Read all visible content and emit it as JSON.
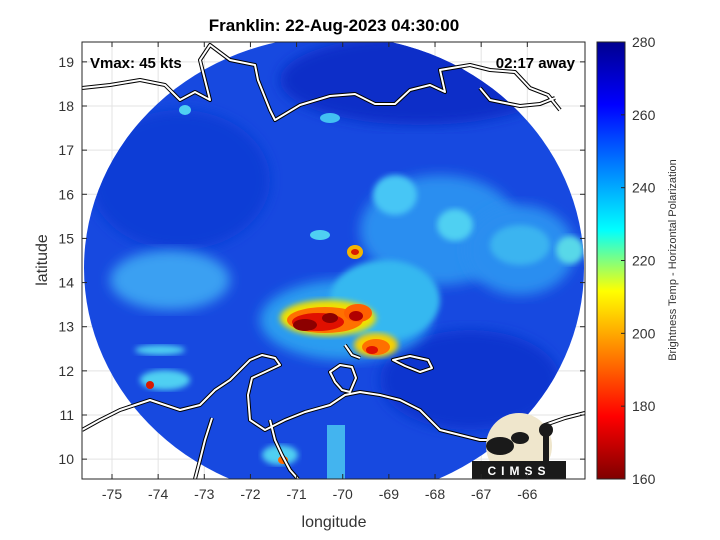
{
  "title": "Franklin: 22-Aug-2023 04:30:00",
  "annotations": {
    "vmax": "Vmax: 45 kts",
    "time_away": "02:17 away"
  },
  "map": {
    "xlabel": "longitude",
    "ylabel": "latitude",
    "xlim": [
      -75.65,
      -64.75
    ],
    "ylim": [
      9.55,
      19.45
    ],
    "x_ticks": [
      -75,
      -74,
      -73,
      -72,
      -71,
      -70,
      -69,
      -68,
      -67,
      -66
    ],
    "y_ticks": [
      10,
      11,
      12,
      13,
      14,
      15,
      16,
      17,
      18,
      19
    ],
    "grid": true,
    "swath_color": "#1749e0",
    "coastline_color": "#ffffff",
    "coastline_outline_color": "#000000"
  },
  "colorbar": {
    "label": "Brightness Temp - Horizontal Polarization",
    "range": [
      160,
      280
    ],
    "ticks": [
      160,
      180,
      200,
      220,
      240,
      260,
      280
    ],
    "stops": [
      "#7f0000",
      "#ff0000",
      "#ff7f00",
      "#ffff00",
      "#00ffff",
      "#0080ff",
      "#0000ff",
      "#00008f"
    ]
  },
  "logo": {
    "text": "CIMSS"
  }
}
